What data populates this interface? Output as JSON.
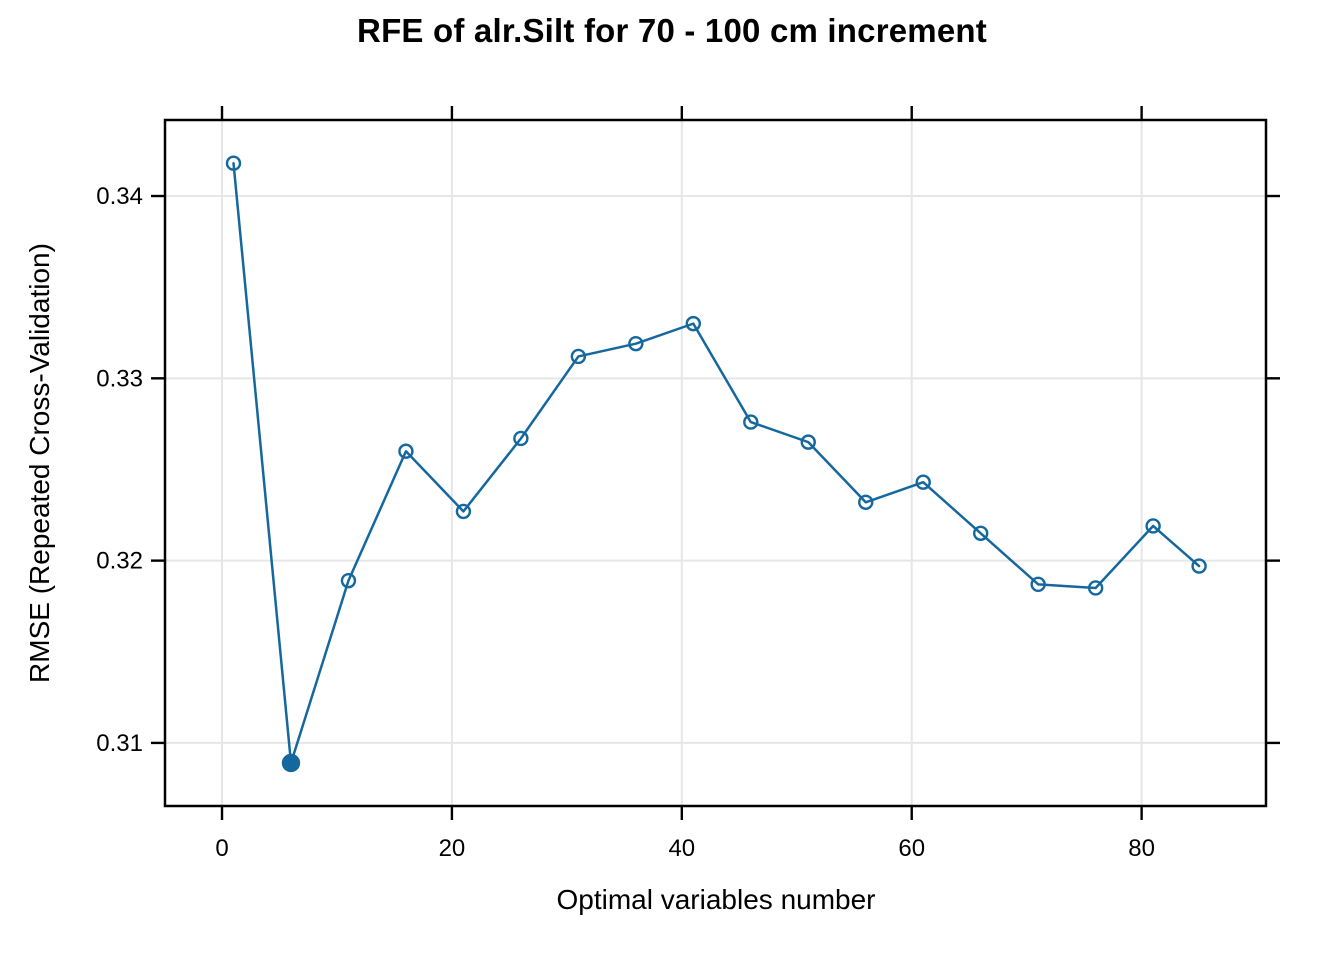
{
  "page": {
    "background": "#ffffff"
  },
  "chart_data": {
    "type": "line",
    "title": "RFE of alr.Silt for 70 - 100 cm increment",
    "xlabel": "Optimal variables number",
    "ylabel": "RMSE (Repeated Cross-Validation)",
    "x": [
      1,
      6,
      11,
      16,
      21,
      26,
      31,
      36,
      41,
      46,
      51,
      56,
      61,
      66,
      71,
      76,
      81,
      85
    ],
    "y": [
      0.3418,
      0.3089,
      0.3189,
      0.326,
      0.3227,
      0.3267,
      0.3312,
      0.3319,
      0.333,
      0.3276,
      0.3265,
      0.3232,
      0.3243,
      0.3215,
      0.3187,
      0.3185,
      0.3219,
      0.3197
    ],
    "best_point": {
      "x": 6,
      "y": 0.3089,
      "marker": "filled-circle"
    },
    "marker": "open-circle",
    "x_ticks": [
      0,
      20,
      40,
      60,
      80
    ],
    "y_ticks": [
      0.31,
      0.32,
      0.33,
      0.34
    ],
    "xlim": [
      -4.96,
      90.82
    ],
    "ylim": [
      0.30654,
      0.34417
    ],
    "grid": true,
    "legend": "none",
    "line_color": "#15689E",
    "grid_color": "#E6E6E6",
    "axis_color": "#000000"
  }
}
